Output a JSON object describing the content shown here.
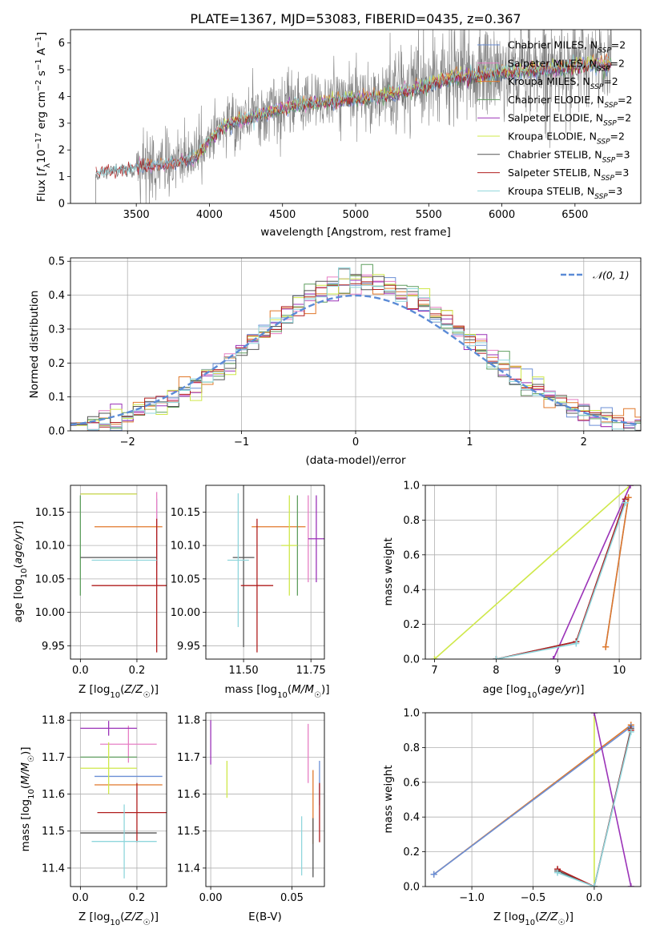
{
  "colors": {
    "Chabrier MILES": "#6b8fd6",
    "Salpeter MILES": "#e67fc4",
    "Kroupa MILES": "#e0782a",
    "Chabrier ELODIE": "#5f9e5f",
    "Salpeter ELODIE": "#9b33b8",
    "Kroupa ELODIE": "#cfe84a",
    "Chabrier STELIB": "#555555",
    "Salpeter STELIB": "#b01e1e",
    "Kroupa STELIB": "#8fd6dc",
    "data": "#808080",
    "normal": "#5b8bd6"
  },
  "chart_data": [
    {
      "type": "line",
      "title": "PLATE=1367, MJD=53083, FIBERID=0435, z=0.367",
      "xlabel": "wavelength [Angstrom, rest frame]",
      "ylabel": "Flux [f_λ 10^-17 erg cm^-2 s^-1 A^-1]",
      "xlim": [
        3050,
        6950
      ],
      "ylim": [
        0,
        6.5
      ],
      "xticks": [
        "3500",
        "4000",
        "4500",
        "5000",
        "5500",
        "6000",
        "6500"
      ],
      "yticks": [
        "0",
        "1",
        "2",
        "3",
        "4",
        "5",
        "6"
      ],
      "grid": false,
      "legend_position": "right",
      "series": [
        {
          "name": "Chabrier MILES, N_SSP=2"
        },
        {
          "name": "Salpeter MILES, N_SSP=2"
        },
        {
          "name": "Kroupa MILES, N_SSP=2"
        },
        {
          "name": "Chabrier ELODIE, N_SSP=2"
        },
        {
          "name": "Salpeter ELODIE, N_SSP=2"
        },
        {
          "name": "Kroupa ELODIE, N_SSP=2"
        },
        {
          "name": "Chabrier STELIB, N_SSP=3"
        },
        {
          "name": "Salpeter STELIB, N_SSP=3"
        },
        {
          "name": "Kroupa STELIB, N_SSP=3"
        }
      ],
      "continuum": {
        "x": [
          3220,
          3500,
          3700,
          3900,
          4000,
          4100,
          4300,
          4500,
          4700,
          4900,
          5100,
          5300,
          5500,
          5700,
          5900,
          6100,
          6300,
          6500,
          6750
        ],
        "y": [
          1.15,
          1.35,
          1.5,
          1.7,
          2.4,
          2.95,
          3.3,
          3.6,
          3.8,
          3.9,
          4.0,
          4.2,
          4.5,
          4.8,
          4.9,
          5.0,
          5.1,
          5.2,
          5.3
        ]
      }
    },
    {
      "type": "line",
      "xlabel": "(data-model)/error",
      "ylabel": "Normed distribution",
      "xlim": [
        -2.5,
        2.5
      ],
      "ylim": [
        0,
        0.51
      ],
      "xticks": [
        "−2",
        "−1",
        "0",
        "1",
        "2"
      ],
      "yticks": [
        "0.0",
        "0.1",
        "0.2",
        "0.3",
        "0.4",
        "0.5"
      ],
      "grid": true,
      "legend_position": "top-right",
      "legend": "𝒩(0, 1)",
      "normal": {
        "mean": 0,
        "sd": 1
      }
    },
    {
      "type": "scatter",
      "xlabel": "Z [log10(Z/Z☉)]",
      "ylabel": "age  [log10(age/yr)]",
      "xlim": [
        -0.035,
        0.305
      ],
      "ylim": [
        9.93,
        10.19
      ],
      "xticks": [
        "0.0",
        "0.2"
      ],
      "yticks": [
        "9.95",
        "10.00",
        "10.05",
        "10.10",
        "10.15"
      ],
      "points": [
        {
          "model": "Chabrier MILES",
          "x": 0.27,
          "xerr": 0.0,
          "y": 10.12,
          "yerr": 0.05
        },
        {
          "model": "Salpeter MILES",
          "x": 0.27,
          "xerr": 0.0,
          "y": 10.11,
          "yerr": 0.07
        },
        {
          "model": "Kroupa MILES",
          "x": 0.17,
          "xerr": 0.12,
          "y": 10.128,
          "yerr": 0.0
        },
        {
          "model": "Chabrier ELODIE",
          "x": 0.0,
          "xerr": 0.0,
          "y": 10.1,
          "yerr": 0.075
        },
        {
          "model": "Salpeter ELODIE",
          "x": 0.1,
          "xerr": 0.1,
          "y": 10.177,
          "yerr": 0.0
        },
        {
          "model": "Kroupa ELODIE",
          "x": 0.1,
          "xerr": 0.1,
          "y": 10.177,
          "yerr": 0.0
        },
        {
          "model": "Chabrier STELIB",
          "x": 0.135,
          "xerr": 0.135,
          "y": 10.082,
          "yerr": 0.0
        },
        {
          "model": "Salpeter STELIB",
          "x": 0.27,
          "xerr": 0.23,
          "y": 10.04,
          "yerr": 0.1
        },
        {
          "model": "Kroupa STELIB",
          "x": 0.155,
          "xerr": 0.115,
          "y": 10.078,
          "yerr": 0.0
        }
      ]
    },
    {
      "type": "scatter",
      "xlabel": "mass [log10(M/M☉)]",
      "xlim": [
        11.36,
        11.8
      ],
      "ylim": [
        9.93,
        10.19
      ],
      "xticks": [
        "11.50",
        "11.75"
      ],
      "yticks": [
        "9.95",
        "10.00",
        "10.05",
        "10.10",
        "10.15"
      ],
      "points": [
        {
          "model": "Chabrier MILES",
          "x": 11.65,
          "xerr": 0.0,
          "y": 10.128,
          "yerr": 0.0
        },
        {
          "model": "Salpeter MILES",
          "x": 11.74,
          "xerr": 0.0,
          "y": 10.11,
          "yerr": 0.065
        },
        {
          "model": "Kroupa MILES",
          "x": 11.63,
          "xerr": 0.1,
          "y": 10.128,
          "yerr": 0.0
        },
        {
          "model": "Chabrier ELODIE",
          "x": 11.7,
          "xerr": 0.0,
          "y": 10.1,
          "yerr": 0.075
        },
        {
          "model": "Salpeter ELODIE",
          "x": 11.77,
          "xerr": 0.03,
          "y": 10.11,
          "yerr": 0.065
        },
        {
          "model": "Kroupa ELODIE",
          "x": 11.67,
          "xerr": 0.03,
          "y": 10.1,
          "yerr": 0.075
        },
        {
          "model": "Chabrier STELIB",
          "x": 11.5,
          "xerr": 0.04,
          "y": 10.082,
          "yerr": 0.134
        },
        {
          "model": "Salpeter STELIB",
          "x": 11.55,
          "xerr": 0.06,
          "y": 10.04,
          "yerr": 0.1
        },
        {
          "model": "Kroupa STELIB",
          "x": 11.48,
          "xerr": 0.04,
          "y": 10.078,
          "yerr": 0.1
        }
      ]
    },
    {
      "type": "line",
      "xlabel": "age  [log10(age/yr)]",
      "ylabel": "mass weight",
      "xlim": [
        6.85,
        10.35
      ],
      "ylim": [
        0,
        1
      ],
      "xticks": [
        "7",
        "8",
        "9",
        "10"
      ],
      "yticks": [
        "0.0",
        "0.2",
        "0.4",
        "0.6",
        "0.8",
        "1.0"
      ],
      "grid": true,
      "series": [
        {
          "model": "Chabrier MILES",
          "x": [
            9.78,
            10.15
          ],
          "y": [
            0.07,
            0.93
          ]
        },
        {
          "model": "Kroupa MILES",
          "x": [
            9.78,
            10.15
          ],
          "y": [
            0.07,
            0.93
          ]
        },
        {
          "model": "Kroupa ELODIE",
          "x": [
            7.0,
            10.18
          ],
          "y": [
            0.0,
            1.0
          ]
        },
        {
          "model": "Salpeter ELODIE",
          "x": [
            8.93,
            10.18
          ],
          "y": [
            0.0,
            1.0
          ]
        },
        {
          "model": "Chabrier STELIB",
          "x": [
            8.0,
            9.3,
            10.1
          ],
          "y": [
            0.0,
            0.1,
            0.92
          ]
        },
        {
          "model": "Salpeter STELIB",
          "x": [
            8.0,
            9.3,
            10.1
          ],
          "y": [
            0.0,
            0.1,
            0.92
          ]
        },
        {
          "model": "Kroupa STELIB",
          "x": [
            8.0,
            9.3,
            10.1
          ],
          "y": [
            0.0,
            0.09,
            0.9
          ]
        }
      ]
    },
    {
      "type": "scatter",
      "xlabel": "Z [log10(Z/Z☉)]",
      "ylabel": "mass [log10(M/M☉)]",
      "xlim": [
        -0.035,
        0.305
      ],
      "ylim": [
        11.35,
        11.82
      ],
      "xticks": [
        "0.0",
        "0.2"
      ],
      "yticks": [
        "11.4",
        "11.5",
        "11.6",
        "11.7",
        "11.8"
      ],
      "points": [
        {
          "model": "Chabrier MILES",
          "x": 0.17,
          "xerr": 0.12,
          "y": 11.648,
          "yerr": 0.0
        },
        {
          "model": "Salpeter MILES",
          "x": 0.17,
          "xerr": 0.1,
          "y": 11.735,
          "yerr": 0.05
        },
        {
          "model": "Kroupa MILES",
          "x": 0.17,
          "xerr": 0.12,
          "y": 11.625,
          "yerr": 0.0
        },
        {
          "model": "Chabrier ELODIE",
          "x": 0.1,
          "xerr": 0.1,
          "y": 11.7,
          "yerr": 0.0
        },
        {
          "model": "Salpeter ELODIE",
          "x": 0.1,
          "xerr": 0.1,
          "y": 11.778,
          "yerr": 0.02
        },
        {
          "model": "Kroupa ELODIE",
          "x": 0.1,
          "xerr": 0.1,
          "y": 11.67,
          "yerr": 0.07
        },
        {
          "model": "Chabrier STELIB",
          "x": 0.135,
          "xerr": 0.135,
          "y": 11.495,
          "yerr": 0.0
        },
        {
          "model": "Salpeter STELIB",
          "x": 0.2,
          "xerr": 0.14,
          "y": 11.55,
          "yerr": 0.08
        },
        {
          "model": "Kroupa STELIB",
          "x": 0.155,
          "xerr": 0.115,
          "y": 11.472,
          "yerr": 0.1
        }
      ]
    },
    {
      "type": "scatter",
      "xlabel": "E(B-V)",
      "xlim": [
        -0.003,
        0.07
      ],
      "ylim": [
        11.35,
        11.82
      ],
      "xticks": [
        "0.00",
        "0.05"
      ],
      "yticks": [
        "11.4",
        "11.5",
        "11.6",
        "11.7",
        "11.8"
      ],
      "points": [
        {
          "model": "Chabrier MILES",
          "x": 0.067,
          "xerr": 0.0,
          "y": 11.63,
          "yerr": 0.06
        },
        {
          "model": "Salpeter MILES",
          "x": 0.06,
          "xerr": 0.0,
          "y": 11.71,
          "yerr": 0.08
        },
        {
          "model": "Kroupa MILES",
          "x": 0.063,
          "xerr": 0.0,
          "y": 11.565,
          "yerr": 0.1
        },
        {
          "model": "Chabrier ELODIE",
          "x": 0.0,
          "xerr": 0.0,
          "y": 11.7,
          "yerr": 0.0
        },
        {
          "model": "Salpeter ELODIE",
          "x": 0.0,
          "xerr": 0.0,
          "y": 11.74,
          "yerr": 0.06
        },
        {
          "model": "Kroupa ELODIE",
          "x": 0.01,
          "xerr": 0.0,
          "y": 11.64,
          "yerr": 0.05
        },
        {
          "model": "Chabrier STELIB",
          "x": 0.063,
          "xerr": 0.0,
          "y": 11.455,
          "yerr": 0.08
        },
        {
          "model": "Salpeter STELIB",
          "x": 0.067,
          "xerr": 0.0,
          "y": 11.55,
          "yerr": 0.08
        },
        {
          "model": "Kroupa STELIB",
          "x": 0.056,
          "xerr": 0.0,
          "y": 11.46,
          "yerr": 0.08
        }
      ]
    },
    {
      "type": "line",
      "xlabel": "Z [log10(Z/Z☉)]",
      "ylabel": "mass weight",
      "xlim": [
        -1.38,
        0.38
      ],
      "ylim": [
        0,
        1
      ],
      "xticks": [
        "−1.0",
        "−0.5",
        "0.0"
      ],
      "yticks": [
        "0.0",
        "0.2",
        "0.4",
        "0.6",
        "0.8",
        "1.0"
      ],
      "grid": true,
      "series": [
        {
          "model": "Kroupa MILES",
          "x": [
            -1.31,
            0.3
          ],
          "y": [
            0.07,
            0.93
          ]
        },
        {
          "model": "Chabrier MILES",
          "x": [
            -1.31,
            0.3
          ],
          "y": [
            0.07,
            0.92
          ]
        },
        {
          "model": "Kroupa ELODIE",
          "x": [
            0.0,
            0.0
          ],
          "y": [
            0.0,
            1.0
          ]
        },
        {
          "model": "Salpeter ELODIE",
          "x": [
            0.0,
            0.3
          ],
          "y": [
            1.0,
            0.0
          ]
        },
        {
          "model": "Chabrier STELIB",
          "x": [
            -0.3,
            0.0,
            0.3
          ],
          "y": [
            0.09,
            0.0,
            0.91
          ]
        },
        {
          "model": "Salpeter STELIB",
          "x": [
            -0.3,
            0.0,
            0.3
          ],
          "y": [
            0.1,
            0.0,
            0.9
          ]
        },
        {
          "model": "Kroupa STELIB",
          "x": [
            -0.3,
            0.0,
            0.3
          ],
          "y": [
            0.08,
            0.0,
            0.89
          ]
        }
      ]
    }
  ]
}
